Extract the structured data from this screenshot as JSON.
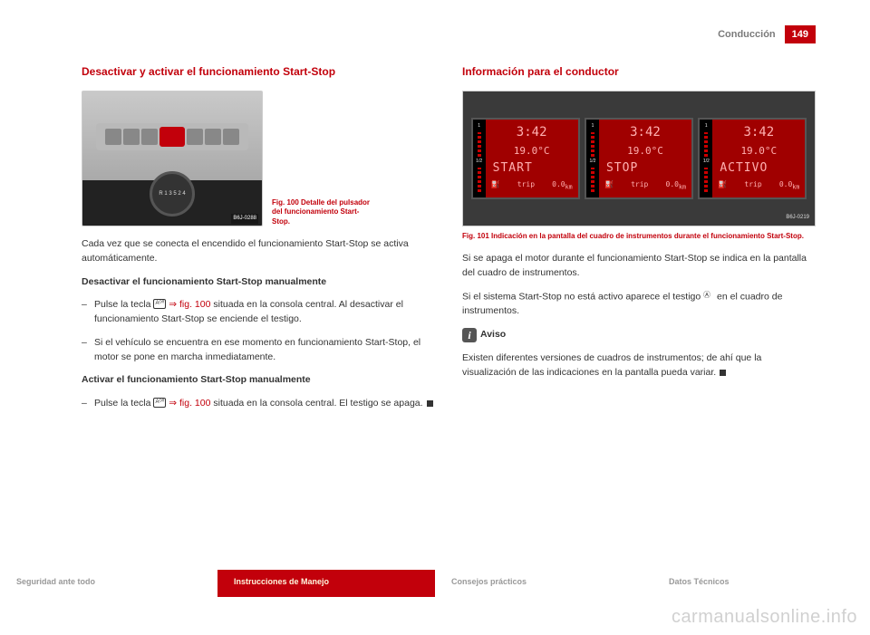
{
  "header": {
    "title": "Conducción",
    "page_number": "149"
  },
  "left": {
    "section_title": "Desactivar y activar el funcionamiento Start-Stop",
    "fig100": {
      "caption": "Fig. 100  Detalle del pulsador del funcionamiento Start-Stop.",
      "gear_text": "R 1 3 5\n  2 4",
      "code": "B6J-0288"
    },
    "intro": "Cada vez que se conecta el encendido el funcionamiento Start-Stop se activa automáticamente.",
    "deact_title": "Desactivar el funcionamiento Start-Stop manualmente",
    "deact_item1_pre": "Pulse la tecla ",
    "deact_item1_link": "⇒ fig. 100",
    "deact_item1_post": " situada en la consola central. Al desactivar el funcionamiento Start-Stop se enciende el testigo.",
    "deact_item2": "Si el vehículo se encuentra en ese momento en funcionamiento Start-Stop, el motor se pone en marcha inmediatamente.",
    "act_title": "Activar el funcionamiento Start-Stop manualmente",
    "act_item1_pre": "Pulse la tecla ",
    "act_item1_link": "⇒ fig. 100",
    "act_item1_post": " situada en la consola central. El testigo se apaga."
  },
  "right": {
    "section_title": "Información para el conductor",
    "fig101": {
      "screens": [
        {
          "time": "3:42",
          "temp": "19.0°C",
          "msg": "START",
          "trip": "0.0",
          "unit": "km",
          "label_trip": "trip",
          "fuel_top": "1",
          "fuel_mid": "1/2"
        },
        {
          "time": "3:42",
          "temp": "19.0°C",
          "msg": "STOP",
          "trip": "0.0",
          "unit": "km",
          "label_trip": "trip",
          "fuel_top": "1",
          "fuel_mid": "1/2"
        },
        {
          "time": "3:42",
          "temp": "19.0°C",
          "msg": "ACTIVO",
          "trip": "0.0",
          "unit": "km",
          "label_trip": "trip",
          "fuel_top": "1",
          "fuel_mid": "1/2"
        }
      ],
      "code": "B6J-0219",
      "caption": "Fig. 101  Indicación en la pantalla del cuadro de instrumentos durante el funcionamiento Start-Stop."
    },
    "p1": "Si se apaga el motor durante el funcionamiento Start-Stop se indica en la pantalla del cuadro de instrumentos.",
    "p2_pre": "Si el sistema Start-Stop no está activo aparece el testigo ",
    "p2_post": " en el cuadro de instrumentos.",
    "aviso_title": "Aviso",
    "aviso_body": "Existen diferentes versiones de cuadros de instrumentos; de ahí que la visualización de las indicaciones en la pantalla pueda variar."
  },
  "footer": {
    "tabs": [
      "Seguridad ante todo",
      "Instrucciones de Manejo",
      "Consejos prácticos",
      "Datos Técnicos"
    ],
    "active_index": 1
  },
  "watermark": "carmanualsonline.info",
  "icons": {
    "btn_label": "Aᴼᶠᶠ"
  },
  "colors": {
    "accent": "#c2000b",
    "text": "#333333",
    "header_grey": "#7a7a7a",
    "screen_bg": "#a00000",
    "screen_text": "#ffb0b0"
  }
}
